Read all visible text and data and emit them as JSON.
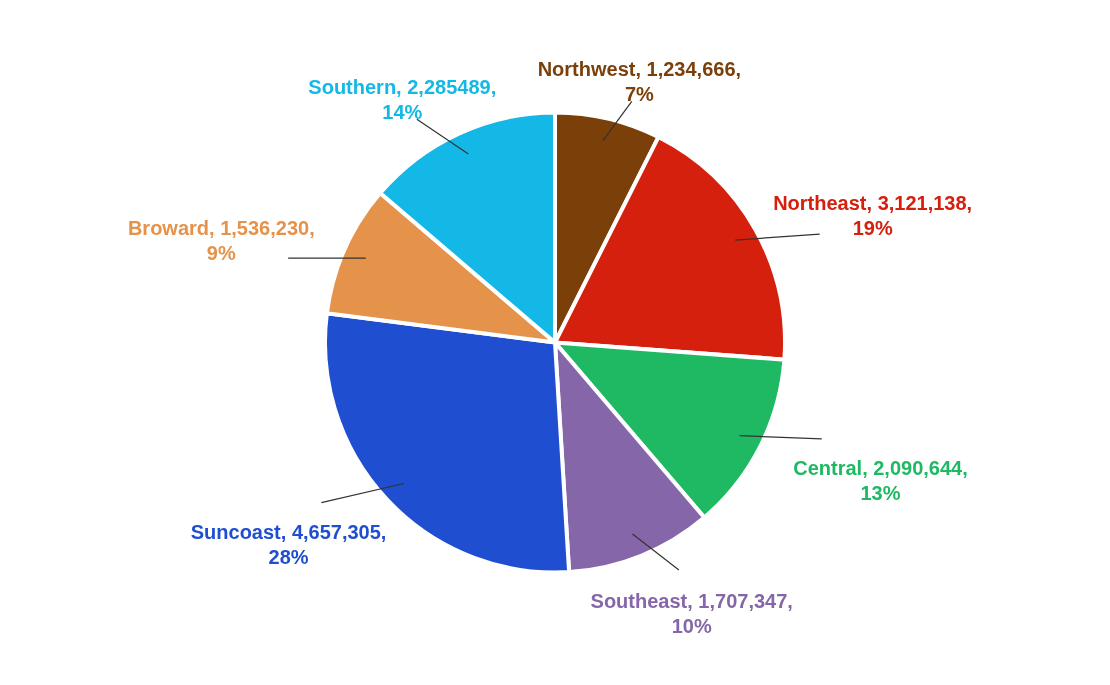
{
  "chart_data": {
    "type": "pie",
    "categories": [
      "Northwest",
      "Northeast",
      "Central",
      "Southeast",
      "Suncoast",
      "Broward",
      "Southern"
    ],
    "values": [
      1234666,
      3121138,
      2090644,
      1707347,
      4657305,
      1536230,
      2285489
    ],
    "colors": [
      "#7b3f0a",
      "#d4200c",
      "#1fb863",
      "#8566a8",
      "#1f4fd0",
      "#e5924b",
      "#14b8e6"
    ],
    "value_labels": [
      "1,234,666, 7%",
      "3,121,138, 19%",
      "2,090,644, 13%",
      "1,707,347, 10%",
      "4,657,305, 28%",
      "1,536,230, 9%",
      "2,285489, 14%"
    ]
  }
}
